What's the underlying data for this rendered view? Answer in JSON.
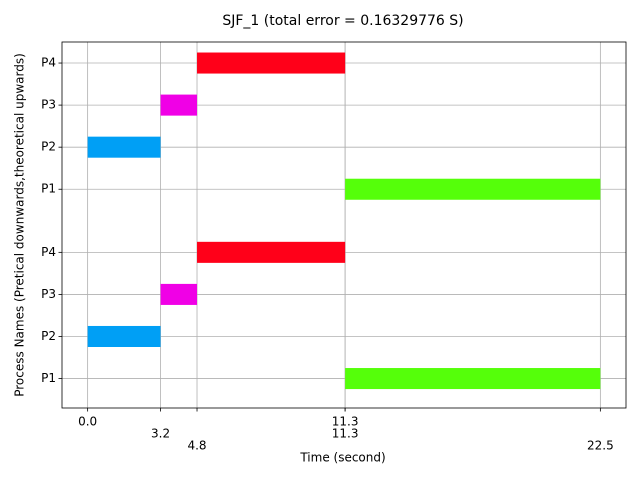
{
  "chart_data": {
    "type": "gantt",
    "title": "SJF_1 (total error = 0.16329776 S)",
    "xlabel": "Time (second)",
    "ylabel": "Process Names (Pretical downwards,theoretical upwards)",
    "xlim": [
      -1.125,
      23.625
    ],
    "xticks": [
      {
        "value": 0,
        "label": "0.0"
      },
      3.2,
      4.8,
      11.3,
      11.3,
      22.5
    ],
    "ylim": [
      0.3,
      9
    ],
    "yticks": [
      {
        "value": 1,
        "label": "P1"
      },
      {
        "value": 2,
        "label": "P2"
      },
      {
        "value": 3,
        "label": "P3"
      },
      {
        "value": 4,
        "label": "P4"
      },
      {
        "value": 5.5,
        "label": "P1"
      },
      {
        "value": 6.5,
        "label": "P2"
      },
      {
        "value": 7.5,
        "label": "P3"
      },
      {
        "value": 8.5,
        "label": "P4"
      }
    ],
    "grid": true,
    "bar_height": 0.5,
    "bars": [
      {
        "y": 2,
        "start": 0,
        "end": 3.2,
        "color": "#009ff5"
      },
      {
        "y": 3,
        "start": 3.2,
        "end": 4.8,
        "color": "#f000e6"
      },
      {
        "y": 4,
        "start": 4.8,
        "end": 11.3,
        "color": "#ff0019"
      },
      {
        "y": 1,
        "start": 11.3,
        "end": 22.5,
        "color": "#55ff0a"
      },
      {
        "y": 6.5,
        "start": 0,
        "end": 3.2,
        "color": "#009ff5"
      },
      {
        "y": 7.5,
        "start": 3.2,
        "end": 4.8,
        "color": "#f000e6"
      },
      {
        "y": 8.5,
        "start": 4.8,
        "end": 11.3,
        "color": "#ff0019"
      },
      {
        "y": 5.5,
        "start": 11.3,
        "end": 22.5,
        "color": "#55ff0a"
      }
    ]
  }
}
